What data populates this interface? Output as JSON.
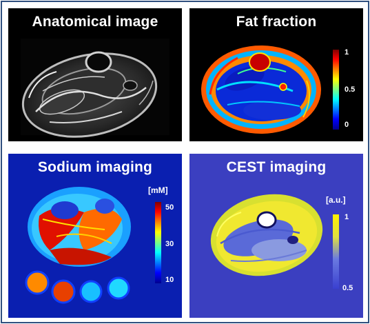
{
  "panels": {
    "anatomical": {
      "title": "Anatomical image",
      "background": "#000000"
    },
    "fat": {
      "title": "Fat fraction",
      "background": "#000000",
      "colorbar": {
        "max": "1",
        "mid": "0.5",
        "min": "0",
        "colormap": "jet"
      }
    },
    "sodium": {
      "title": "Sodium imaging",
      "background": "#0a1fb0",
      "colorbar": {
        "unit": "[mM]",
        "max": "50",
        "mid": "30",
        "min": "10",
        "colormap": "jet"
      }
    },
    "cest": {
      "title": "CEST imaging",
      "background": "#3b3fc0",
      "colorbar": {
        "unit": "[a.u.]",
        "max": "1",
        "min": "0.5",
        "colormap": "blue-yellow"
      }
    }
  },
  "frame_color": "#2f4f7f"
}
